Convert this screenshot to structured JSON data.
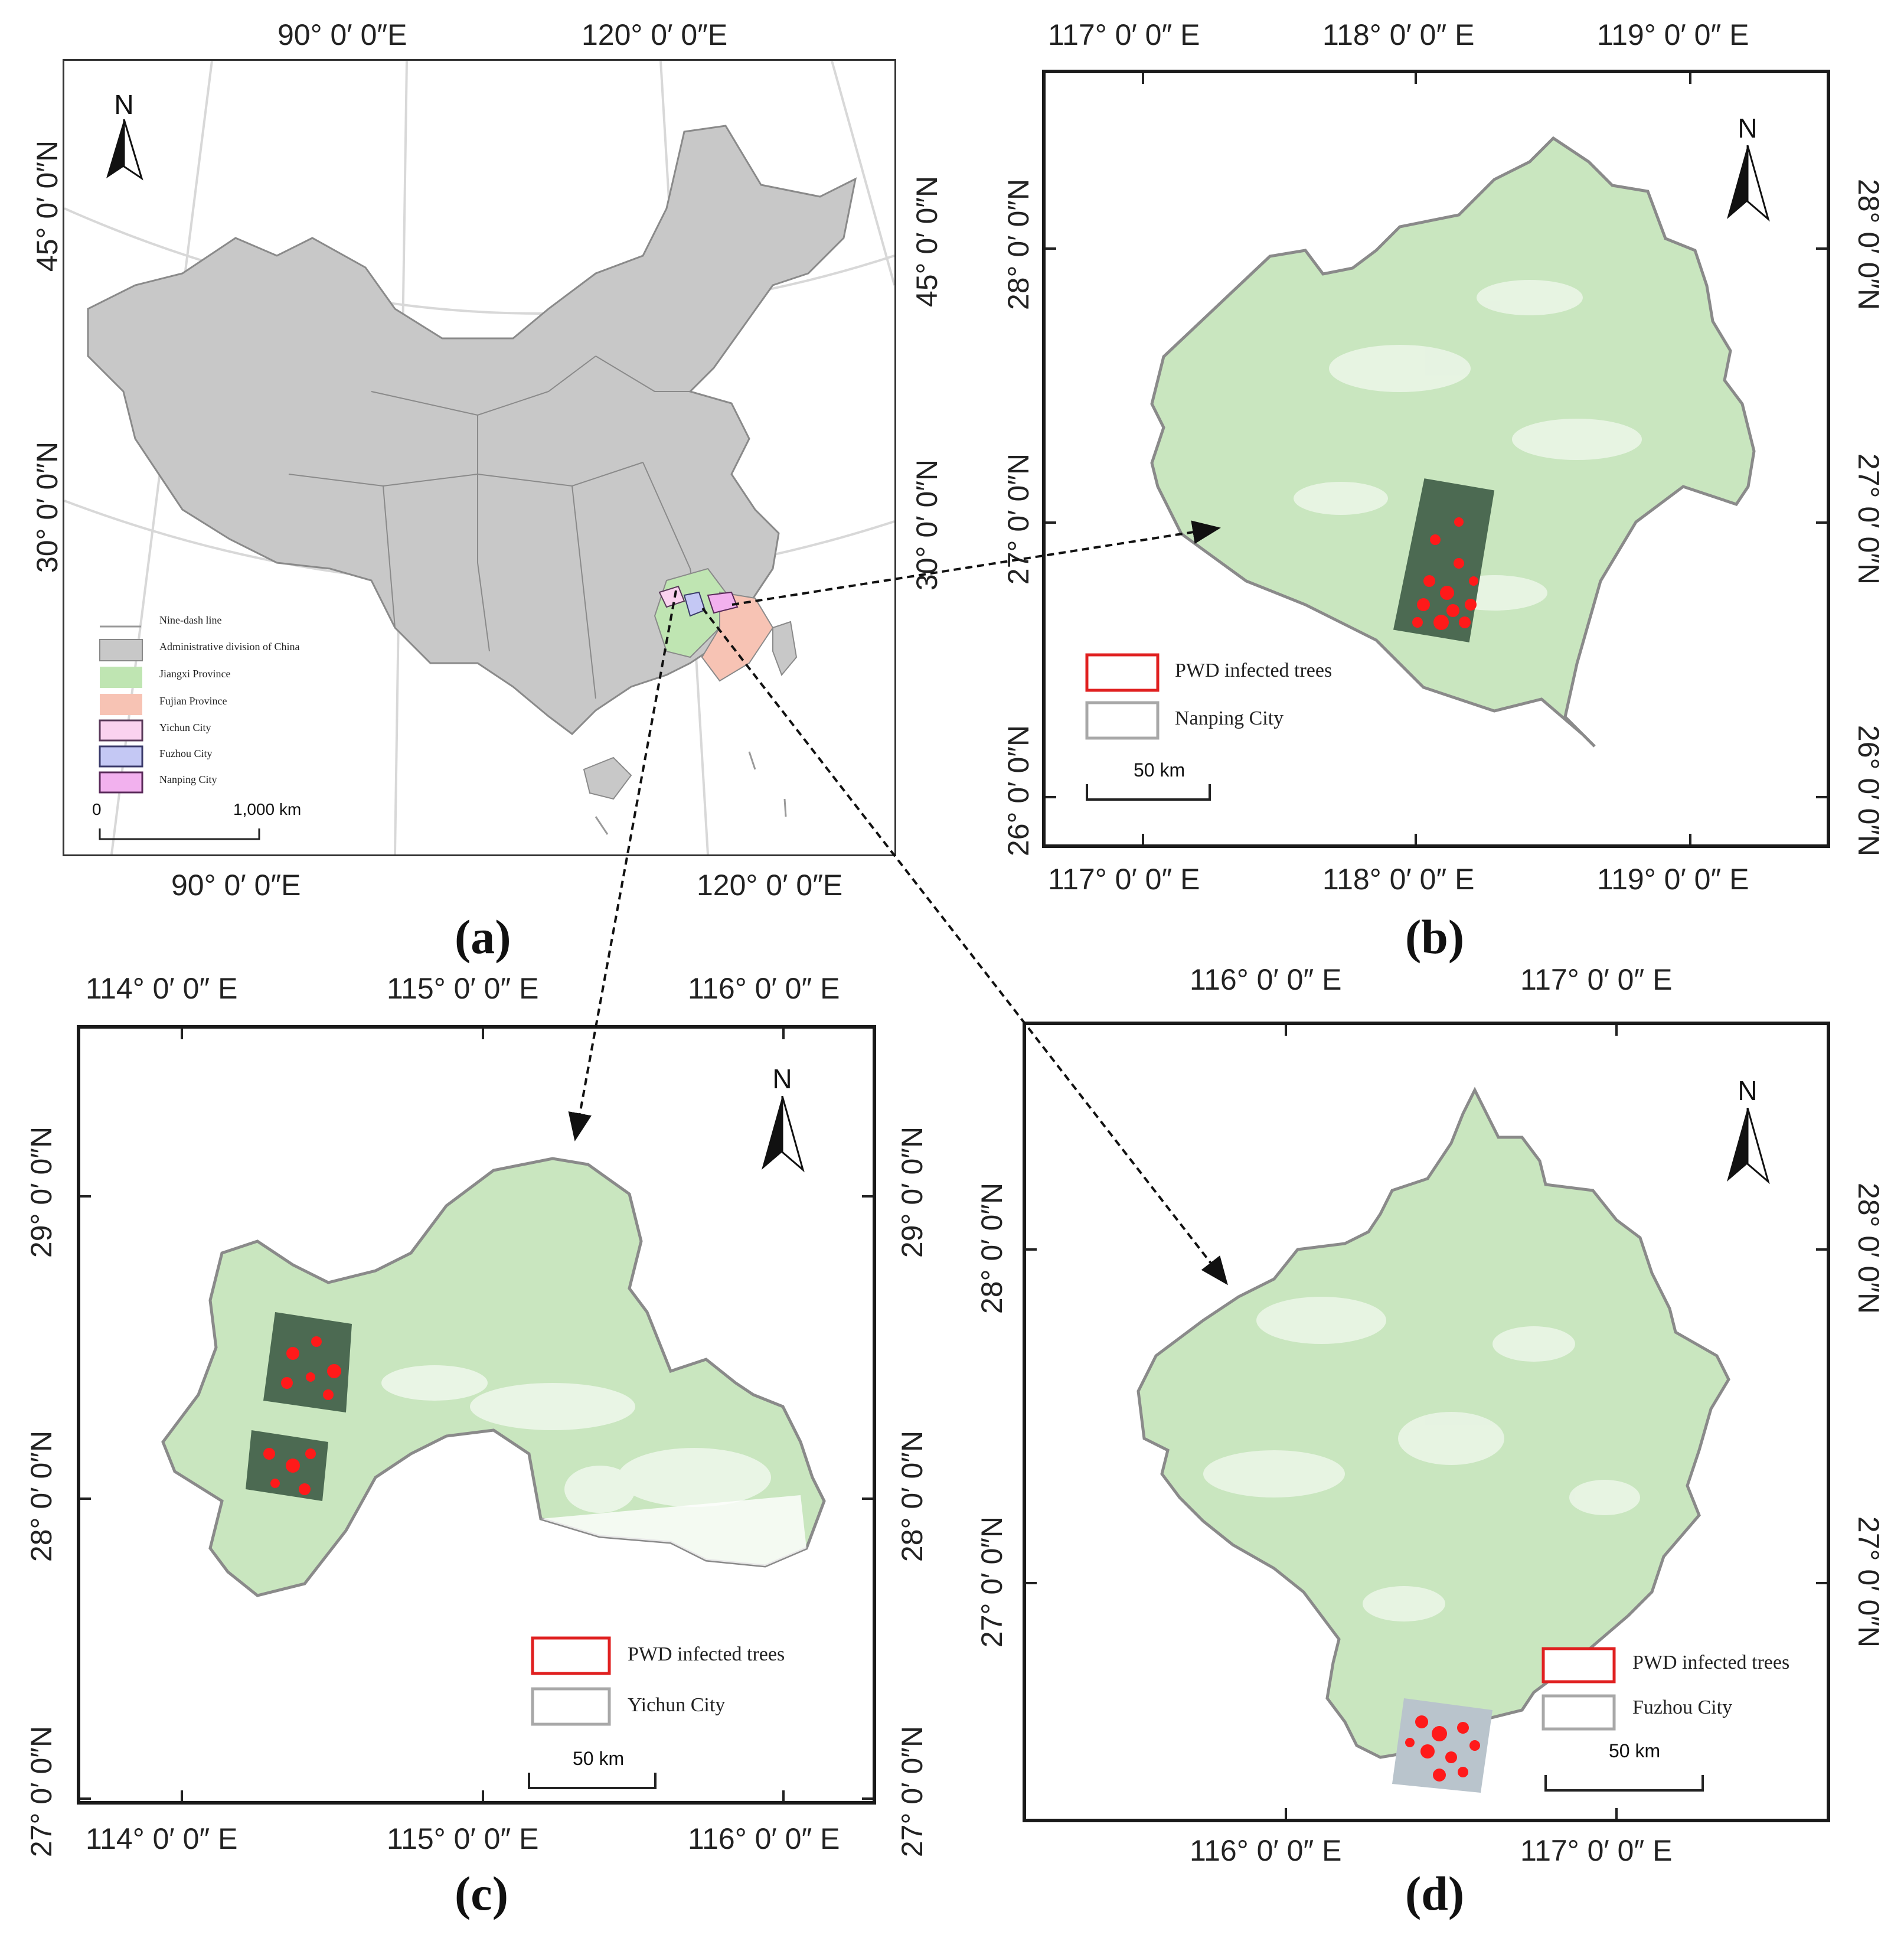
{
  "panels": {
    "a": {
      "label": "(a)",
      "coords": {
        "top_lon1": "90°  0′  0″E",
        "top_lon2": "120°  0′  0″E",
        "bot_lon1": "90°  0′  0″E",
        "bot_lon2": "120°  0′  0″E",
        "left_lat1": "45°  0′  0″N",
        "left_lat2": "30°  0′  0″N",
        "right_lat1": "45°  0′  0″N",
        "right_lat2": "30°  0′  0″N"
      },
      "north": "N",
      "legend": [
        {
          "label": "Nine-dash line",
          "color": "#9a9a9a"
        },
        {
          "label": "Administrative division of China",
          "color": "#c8c8c8"
        },
        {
          "label": "Jiangxi Province",
          "color": "#bfe5b2"
        },
        {
          "label": "Fujian Province",
          "color": "#f7c3b4"
        },
        {
          "label": "Yichun City",
          "color": "#fad2ef"
        },
        {
          "label": "Fuzhou City",
          "color": "#c4c8f4"
        },
        {
          "label": "Nanping City",
          "color": "#f2b1ee"
        }
      ],
      "scale": {
        "start": "0",
        "end": "1,000 km"
      }
    },
    "b": {
      "label": "(b)",
      "coords": {
        "lon1": "117°  0′ 0″ E",
        "lon2": "118°  0′ 0″ E",
        "lon3": "119°  0′ 0″ E",
        "lat1": "28°  0′ 0″N",
        "lat2": "27°  0′ 0″N",
        "lat3": "26°  0′ 0″N"
      },
      "north": "N",
      "legend": [
        {
          "label": "PWD infected trees",
          "color": "#e02020"
        },
        {
          "label": "Nanping City",
          "color": "#a8a8a8"
        }
      ],
      "scale": "50  km"
    },
    "c": {
      "label": "(c)",
      "coords": {
        "lon1": "114°  0′ 0″ E",
        "lon2": "115°  0′ 0″ E",
        "lon3": "116°  0′ 0″ E",
        "lat1": "29°  0′ 0″N",
        "lat2": "28°  0′ 0″N",
        "lat3": "27°  0′ 0″N"
      },
      "north": "N",
      "legend": [
        {
          "label": "PWD infected trees",
          "color": "#e02020"
        },
        {
          "label": "Yichun City",
          "color": "#a8a8a8"
        }
      ],
      "scale": "50  km"
    },
    "d": {
      "label": "(d)",
      "coords": {
        "lon1": "116°  0′ 0″ E",
        "lon2": "117°  0′ 0″ E",
        "lat1": "28°  0′ 0″N",
        "lat2": "27°  0′ 0″N"
      },
      "north": "N",
      "legend": [
        {
          "label": "PWD infected trees",
          "color": "#e02020"
        },
        {
          "label": "Fuzhou City",
          "color": "#a8a8a8"
        }
      ],
      "scale": "50  km"
    }
  },
  "colors": {
    "forest": "#c9e6bf",
    "forest_dark": "#a9d49a",
    "china": "#c8c8c8",
    "infected": "#ff1a1a",
    "image_tile": "#4c6a52"
  }
}
